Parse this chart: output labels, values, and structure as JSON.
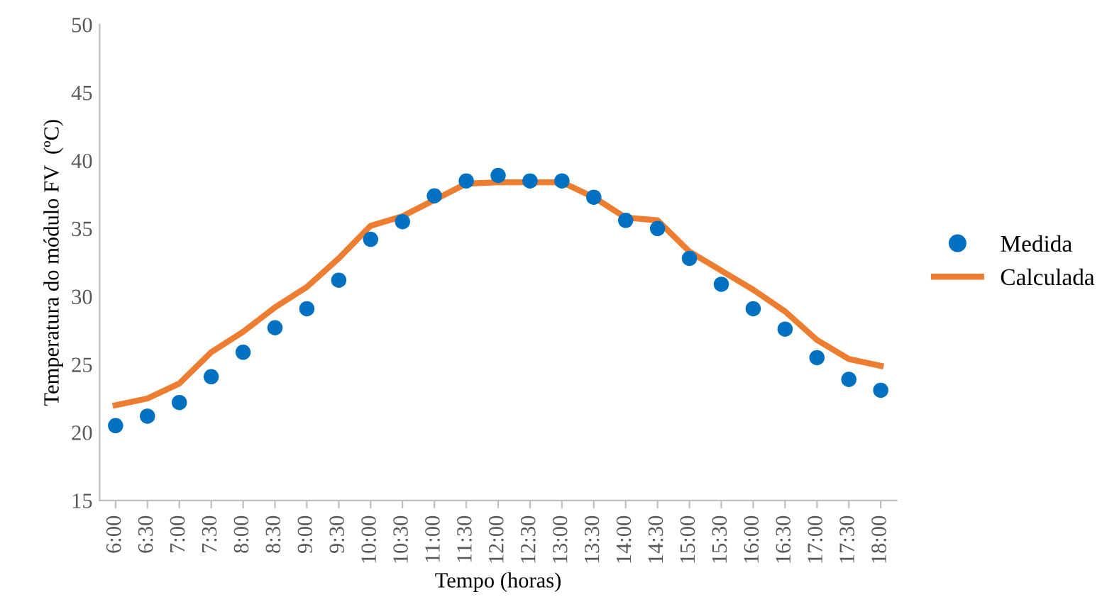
{
  "chart_data": {
    "type": "line",
    "xlabel": "Tempo (horas)",
    "ylabel": "Temperatura do módulo FV  (ºC)",
    "categories": [
      "6:00",
      "6:30",
      "7:00",
      "7:30",
      "8:00",
      "8:30",
      "9:00",
      "9:30",
      "10:00",
      "10:30",
      "11:00",
      "11:30",
      "12:00",
      "12:30",
      "13:00",
      "13:30",
      "14:00",
      "14:30",
      "15:00",
      "15:30",
      "16:00",
      "16:30",
      "17:00",
      "17:30",
      "18:00"
    ],
    "series": [
      {
        "name": "Medida",
        "type": "scatter",
        "marker": "circle",
        "color": "#0070c0",
        "values": [
          20.5,
          21.2,
          22.2,
          24.1,
          25.9,
          27.7,
          29.1,
          31.2,
          34.2,
          35.5,
          37.4,
          38.5,
          38.9,
          38.5,
          38.5,
          37.3,
          35.6,
          35.0,
          32.8,
          30.9,
          29.1,
          27.6,
          25.5,
          23.9,
          23.1
        ]
      },
      {
        "name": "Calculada",
        "color": "#ed7d31",
        "values": [
          22.0,
          22.5,
          23.6,
          25.9,
          27.4,
          29.2,
          30.7,
          32.8,
          35.2,
          35.9,
          37.1,
          38.3,
          38.4,
          38.4,
          38.4,
          37.3,
          35.8,
          35.6,
          33.3,
          31.9,
          30.5,
          28.9,
          26.8,
          25.4,
          24.9
        ]
      }
    ],
    "ylim": [
      15,
      50
    ],
    "yticks": [
      15,
      20,
      25,
      30,
      35,
      40,
      45,
      50
    ],
    "grid": false,
    "legend": "right"
  }
}
